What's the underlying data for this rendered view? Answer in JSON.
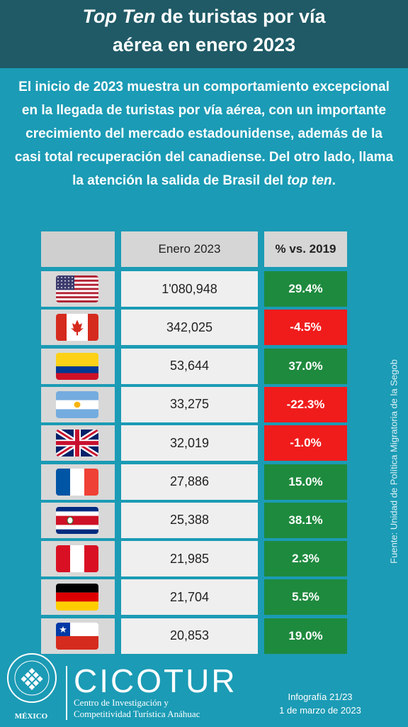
{
  "header": {
    "title_italic": "Top Ten",
    "title_rest": " de turistas por vía",
    "title_line2": "aérea en enero 2023"
  },
  "intro": {
    "before": "El inicio de 2023 muestra un comportamiento excepcional en la llegada de turistas por vía aérea, con un importante crecimiento del mercado estadounidense, además de la casi total recuperación del canadiense. Del otro lado, llama la atención la salida de Brasil del ",
    "italic": "top ten",
    "after": "."
  },
  "chart_data": {
    "type": "table",
    "columns": [
      "",
      "Enero 2023",
      "% vs. 2019"
    ],
    "rows": [
      {
        "flag": "usa-flag-icon",
        "value": "1'080,948",
        "pct": "29.4%",
        "pct_num": 29.4
      },
      {
        "flag": "canada-flag-icon",
        "value": "342,025",
        "pct": "-4.5%",
        "pct_num": -4.5
      },
      {
        "flag": "colombia-flag-icon",
        "value": "53,644",
        "pct": "37.0%",
        "pct_num": 37.0
      },
      {
        "flag": "argentina-flag-icon",
        "value": "33,275",
        "pct": "-22.3%",
        "pct_num": -22.3
      },
      {
        "flag": "uk-flag-icon",
        "value": "32,019",
        "pct": "-1.0%",
        "pct_num": -1.0
      },
      {
        "flag": "france-flag-icon",
        "value": "27,886",
        "pct": "15.0%",
        "pct_num": 15.0
      },
      {
        "flag": "costa-rica-flag-icon",
        "value": "25,388",
        "pct": "38.1%",
        "pct_num": 38.1
      },
      {
        "flag": "peru-flag-icon",
        "value": "21,985",
        "pct": "2.3%",
        "pct_num": 2.3
      },
      {
        "flag": "germany-flag-icon",
        "value": "21,704",
        "pct": "5.5%",
        "pct_num": 5.5
      },
      {
        "flag": "chile-flag-icon",
        "value": "20,853",
        "pct": "19.0%",
        "pct_num": 19.0
      }
    ],
    "positive_color": "#1e8a3e",
    "negative_color": "#f01c1c"
  },
  "source": "Fuente: Unidad de Política Migratoria de la Segob",
  "footer": {
    "logo_text": "MÉXICO",
    "cicotur": "CICOTUR",
    "cicotur_line1": "Centro de Investigación y",
    "cicotur_line2": "Competitividad Turística Anáhuac",
    "info_line1": "Infografía 21/23",
    "info_line2": "1 de marzo de 2023"
  }
}
